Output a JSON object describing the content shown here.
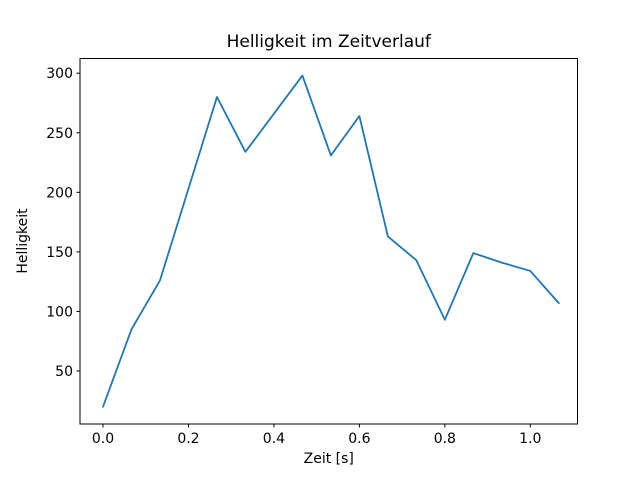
{
  "figure": {
    "background": "#ffffff"
  },
  "chart_data": {
    "type": "line",
    "title": "Helligkeit im Zeitverlauf",
    "xlabel": "Zeit [s]",
    "ylabel": "Helligkeit",
    "x": [
      0.0,
      0.0667,
      0.1333,
      0.2,
      0.2667,
      0.3333,
      0.4,
      0.4667,
      0.5333,
      0.6,
      0.6667,
      0.7333,
      0.8,
      0.8667,
      0.9333,
      1.0,
      1.0667
    ],
    "y": [
      20,
      85,
      126,
      203,
      280,
      234,
      266,
      298,
      231,
      264,
      163,
      143,
      93,
      149,
      141,
      134,
      107
    ],
    "series": [
      {
        "name": "Helligkeit",
        "values": [
          20,
          85,
          126,
          203,
          280,
          234,
          266,
          298,
          231,
          264,
          163,
          143,
          93,
          149,
          141,
          134,
          107
        ]
      }
    ],
    "xticks": [
      0.0,
      0.2,
      0.4,
      0.6,
      0.8,
      1.0
    ],
    "xtick_labels": [
      "0.0",
      "0.2",
      "0.4",
      "0.6",
      "0.8",
      "1.0"
    ],
    "yticks": [
      50,
      100,
      150,
      200,
      250,
      300
    ],
    "ytick_labels": [
      "50",
      "100",
      "150",
      "200",
      "250",
      "300"
    ],
    "xlim": [
      -0.054,
      1.111
    ],
    "ylim": [
      5.5,
      312.5
    ],
    "grid": false,
    "legend": false,
    "line_color": "#1f77b4",
    "spine_color": "#000000",
    "tick_color": "#000000"
  }
}
